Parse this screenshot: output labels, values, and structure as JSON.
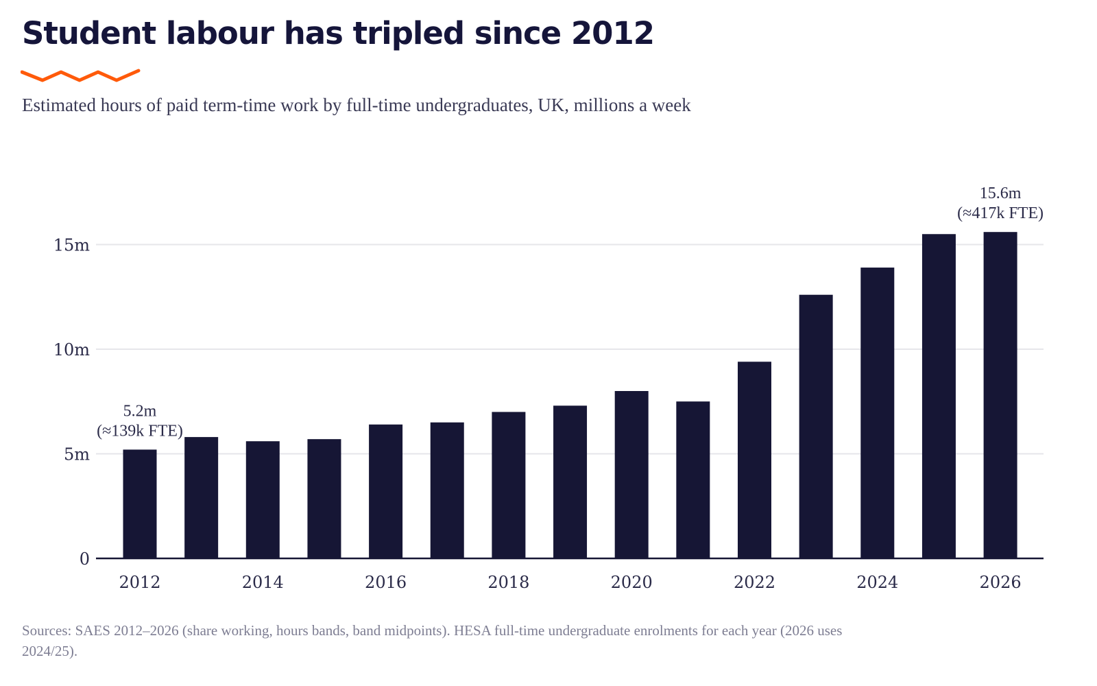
{
  "title": "Student labour has tripled since 2012",
  "subtitle": "Estimated hours of paid term-time work by full-time undergraduates, UK, millions a week",
  "source": "Sources: SAES 2012–2026 (share working, hours bands, band midpoints). HESA full-time undergraduate enrolments for each year (2026 uses 2024/25).",
  "colors": {
    "bar": "#161635",
    "accent": "#ff5a0a",
    "grid": "#e6e6ea",
    "axis": "#161635"
  },
  "chart_data": {
    "type": "bar",
    "categories": [
      "2012",
      "2013",
      "2014",
      "2015",
      "2016",
      "2017",
      "2018",
      "2019",
      "2020",
      "2021",
      "2022",
      "2023",
      "2024",
      "2025",
      "2026"
    ],
    "values": [
      5.2,
      5.8,
      5.6,
      5.7,
      6.4,
      6.5,
      7.0,
      7.3,
      8.0,
      7.5,
      9.4,
      12.6,
      13.9,
      15.5,
      15.6
    ],
    "ylim": [
      0,
      18
    ],
    "yticks": [
      0,
      5,
      10,
      15
    ],
    "ytick_labels": [
      "0",
      "5m",
      "10m",
      "15m"
    ],
    "xtick_labels": [
      "2012",
      "2014",
      "2016",
      "2018",
      "2020",
      "2022",
      "2024",
      "2026"
    ],
    "grid": true,
    "annotations": [
      {
        "category": "2012",
        "line1": "5.2m",
        "line2": "(≈139k FTE)"
      },
      {
        "category": "2026",
        "line1": "15.6m",
        "line2": "(≈417k FTE)"
      }
    ]
  }
}
